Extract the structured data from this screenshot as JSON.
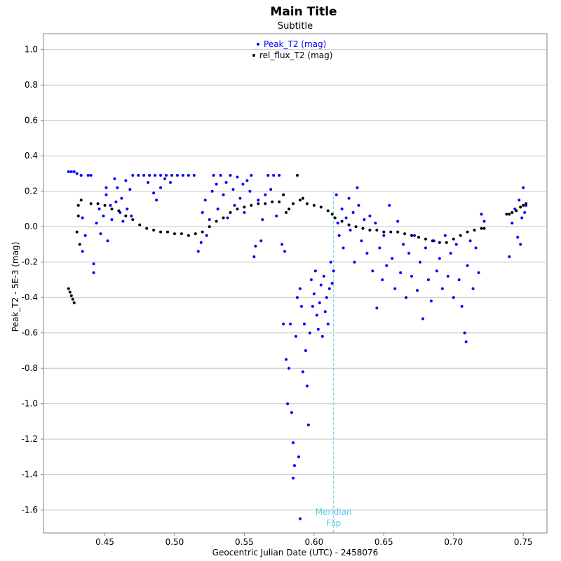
{
  "chart_data": {
    "type": "scatter",
    "title": "Main Title",
    "subtitle": "Subtitle",
    "xlabel": "Geocentric Julian Date (UTC) - 2458076",
    "ylabel": "Peak_T2 - 5E-3 (mag)",
    "xlim": [
      0.406,
      0.767
    ],
    "ylim": [
      -1.73,
      1.09
    ],
    "xticks": [
      0.45,
      0.5,
      0.55,
      0.6,
      0.65,
      0.7,
      0.75
    ],
    "xtick_labels": [
      "0.45",
      "0.50",
      "0.55",
      "0.60",
      "0.65",
      "0.70",
      "0.75"
    ],
    "yticks": [
      1.0,
      0.8,
      0.6,
      0.4,
      0.2,
      0.0,
      -0.2,
      -0.4,
      -0.6,
      -0.8,
      -1.0,
      -1.2,
      -1.4,
      -1.6
    ],
    "ytick_labels": [
      "1.0",
      "0.8",
      "0.6",
      "0.4",
      "0.2",
      "0.0",
      "-0.2",
      "-0.4",
      "-0.6",
      "-0.8",
      "-1.0",
      "-1.2",
      "-1.4",
      "-1.6"
    ],
    "grid": true,
    "legend_position": "top-center",
    "series": [
      {
        "name": "Peak_T2 (mag)",
        "color": "#0000ff",
        "points": [
          [
            0.424,
            0.31
          ],
          [
            0.426,
            0.31
          ],
          [
            0.428,
            0.31
          ],
          [
            0.43,
            0.3
          ],
          [
            0.433,
            0.29
          ],
          [
            0.438,
            0.29
          ],
          [
            0.44,
            0.29
          ],
          [
            0.434,
            0.05
          ],
          [
            0.436,
            -0.05
          ],
          [
            0.434,
            -0.14
          ],
          [
            0.442,
            -0.26
          ],
          [
            0.442,
            -0.21
          ],
          [
            0.444,
            0.02
          ],
          [
            0.446,
            0.1
          ],
          [
            0.447,
            -0.04
          ],
          [
            0.449,
            0.06
          ],
          [
            0.451,
            0.18
          ],
          [
            0.451,
            0.22
          ],
          [
            0.452,
            -0.08
          ],
          [
            0.454,
            0.12
          ],
          [
            0.455,
            0.04
          ],
          [
            0.457,
            0.27
          ],
          [
            0.458,
            0.14
          ],
          [
            0.459,
            0.22
          ],
          [
            0.461,
            0.08
          ],
          [
            0.462,
            0.16
          ],
          [
            0.463,
            0.03
          ],
          [
            0.465,
            0.26
          ],
          [
            0.466,
            0.1
          ],
          [
            0.468,
            0.21
          ],
          [
            0.469,
            0.06
          ],
          [
            0.47,
            0.29
          ],
          [
            0.474,
            0.29
          ],
          [
            0.478,
            0.29
          ],
          [
            0.482,
            0.29
          ],
          [
            0.486,
            0.29
          ],
          [
            0.49,
            0.29
          ],
          [
            0.494,
            0.29
          ],
          [
            0.498,
            0.29
          ],
          [
            0.502,
            0.29
          ],
          [
            0.506,
            0.29
          ],
          [
            0.51,
            0.29
          ],
          [
            0.514,
            0.29
          ],
          [
            0.481,
            0.25
          ],
          [
            0.485,
            0.19
          ],
          [
            0.487,
            0.15
          ],
          [
            0.49,
            0.22
          ],
          [
            0.493,
            0.27
          ],
          [
            0.497,
            0.25
          ],
          [
            0.517,
            -0.14
          ],
          [
            0.519,
            -0.09
          ],
          [
            0.52,
            0.08
          ],
          [
            0.522,
            0.15
          ],
          [
            0.523,
            -0.05
          ],
          [
            0.525,
            0.04
          ],
          [
            0.527,
            0.2
          ],
          [
            0.528,
            0.29
          ],
          [
            0.53,
            0.24
          ],
          [
            0.531,
            0.1
          ],
          [
            0.533,
            0.29
          ],
          [
            0.535,
            0.18
          ],
          [
            0.537,
            0.25
          ],
          [
            0.538,
            0.05
          ],
          [
            0.54,
            0.29
          ],
          [
            0.542,
            0.21
          ],
          [
            0.543,
            0.12
          ],
          [
            0.545,
            0.28
          ],
          [
            0.547,
            0.16
          ],
          [
            0.549,
            0.24
          ],
          [
            0.55,
            0.08
          ],
          [
            0.552,
            0.26
          ],
          [
            0.554,
            0.2
          ],
          [
            0.555,
            0.29
          ],
          [
            0.557,
            -0.17
          ],
          [
            0.558,
            -0.11
          ],
          [
            0.56,
            0.15
          ],
          [
            0.562,
            -0.08
          ],
          [
            0.563,
            0.04
          ],
          [
            0.565,
            0.18
          ],
          [
            0.567,
            0.29
          ],
          [
            0.569,
            0.21
          ],
          [
            0.571,
            0.29
          ],
          [
            0.573,
            0.06
          ],
          [
            0.575,
            0.29
          ],
          [
            0.577,
            -0.1
          ],
          [
            0.579,
            -0.14
          ],
          [
            0.578,
            -0.55
          ],
          [
            0.58,
            -0.75
          ],
          [
            0.581,
            -1.0
          ],
          [
            0.582,
            -0.8
          ],
          [
            0.583,
            -0.55
          ],
          [
            0.584,
            -1.05
          ],
          [
            0.585,
            -1.22
          ],
          [
            0.585,
            -1.42
          ],
          [
            0.586,
            -1.35
          ],
          [
            0.587,
            -0.62
          ],
          [
            0.588,
            -0.4
          ],
          [
            0.589,
            -1.3
          ],
          [
            0.59,
            -1.65
          ],
          [
            0.59,
            -0.35
          ],
          [
            0.591,
            -0.45
          ],
          [
            0.592,
            -0.82
          ],
          [
            0.593,
            -0.55
          ],
          [
            0.594,
            -0.7
          ],
          [
            0.595,
            -0.9
          ],
          [
            0.596,
            -1.12
          ],
          [
            0.597,
            -0.6
          ],
          [
            0.598,
            -0.3
          ],
          [
            0.599,
            -0.45
          ],
          [
            0.6,
            -0.38
          ],
          [
            0.601,
            -0.25
          ],
          [
            0.602,
            -0.5
          ],
          [
            0.603,
            -0.58
          ],
          [
            0.604,
            -0.43
          ],
          [
            0.605,
            -0.33
          ],
          [
            0.606,
            -0.62
          ],
          [
            0.607,
            -0.28
          ],
          [
            0.608,
            -0.48
          ],
          [
            0.609,
            -0.4
          ],
          [
            0.61,
            -0.55
          ],
          [
            0.611,
            -0.35
          ],
          [
            0.612,
            -0.2
          ],
          [
            0.613,
            -0.32
          ],
          [
            0.614,
            -0.25
          ],
          [
            0.616,
            0.18
          ],
          [
            0.617,
            0.02
          ],
          [
            0.618,
            -0.05
          ],
          [
            0.62,
            0.1
          ],
          [
            0.621,
            -0.12
          ],
          [
            0.623,
            0.05
          ],
          [
            0.625,
            0.16
          ],
          [
            0.626,
            -0.02
          ],
          [
            0.628,
            0.08
          ],
          [
            0.629,
            -0.2
          ],
          [
            0.631,
            0.22
          ],
          [
            0.632,
            0.12
          ],
          [
            0.634,
            -0.08
          ],
          [
            0.636,
            0.04
          ],
          [
            0.638,
            -0.15
          ],
          [
            0.64,
            0.06
          ],
          [
            0.642,
            -0.25
          ],
          [
            0.644,
            0.02
          ],
          [
            0.645,
            -0.46
          ],
          [
            0.647,
            -0.12
          ],
          [
            0.649,
            -0.3
          ],
          [
            0.65,
            -0.05
          ],
          [
            0.652,
            -0.22
          ],
          [
            0.654,
            0.12
          ],
          [
            0.656,
            -0.18
          ],
          [
            0.658,
            -0.35
          ],
          [
            0.66,
            0.03
          ],
          [
            0.662,
            -0.26
          ],
          [
            0.664,
            -0.1
          ],
          [
            0.666,
            -0.4
          ],
          [
            0.668,
            -0.15
          ],
          [
            0.67,
            -0.28
          ],
          [
            0.672,
            -0.05
          ],
          [
            0.674,
            -0.36
          ],
          [
            0.676,
            -0.2
          ],
          [
            0.678,
            -0.52
          ],
          [
            0.68,
            -0.12
          ],
          [
            0.682,
            -0.3
          ],
          [
            0.684,
            -0.42
          ],
          [
            0.686,
            -0.08
          ],
          [
            0.688,
            -0.25
          ],
          [
            0.69,
            -0.18
          ],
          [
            0.692,
            -0.35
          ],
          [
            0.694,
            -0.05
          ],
          [
            0.696,
            -0.28
          ],
          [
            0.698,
            -0.15
          ],
          [
            0.7,
            -0.4
          ],
          [
            0.702,
            -0.1
          ],
          [
            0.704,
            -0.3
          ],
          [
            0.706,
            -0.45
          ],
          [
            0.708,
            -0.6
          ],
          [
            0.709,
            -0.65
          ],
          [
            0.71,
            -0.22
          ],
          [
            0.712,
            -0.08
          ],
          [
            0.714,
            -0.35
          ],
          [
            0.716,
            -0.12
          ],
          [
            0.718,
            -0.26
          ],
          [
            0.72,
            0.07
          ],
          [
            0.722,
            0.03
          ],
          [
            0.74,
            -0.17
          ],
          [
            0.742,
            0.02
          ],
          [
            0.744,
            0.1
          ],
          [
            0.746,
            -0.06
          ],
          [
            0.747,
            0.15
          ],
          [
            0.748,
            -0.1
          ],
          [
            0.749,
            0.05
          ],
          [
            0.75,
            0.22
          ],
          [
            0.751,
            0.08
          ],
          [
            0.752,
            0.12
          ]
        ]
      },
      {
        "name": "rel_flux_T2 (mag)",
        "color": "#000000",
        "points": [
          [
            0.424,
            -0.35
          ],
          [
            0.425,
            -0.37
          ],
          [
            0.426,
            -0.39
          ],
          [
            0.427,
            -0.41
          ],
          [
            0.428,
            -0.43
          ],
          [
            0.43,
            -0.03
          ],
          [
            0.431,
            0.06
          ],
          [
            0.431,
            0.12
          ],
          [
            0.432,
            -0.1
          ],
          [
            0.433,
            0.15
          ],
          [
            0.44,
            0.13
          ],
          [
            0.445,
            0.13
          ],
          [
            0.45,
            0.12
          ],
          [
            0.455,
            0.1
          ],
          [
            0.46,
            0.09
          ],
          [
            0.465,
            0.06
          ],
          [
            0.47,
            0.04
          ],
          [
            0.475,
            0.01
          ],
          [
            0.48,
            -0.01
          ],
          [
            0.485,
            -0.02
          ],
          [
            0.49,
            -0.03
          ],
          [
            0.495,
            -0.03
          ],
          [
            0.5,
            -0.04
          ],
          [
            0.505,
            -0.04
          ],
          [
            0.51,
            -0.05
          ],
          [
            0.515,
            -0.04
          ],
          [
            0.52,
            -0.03
          ],
          [
            0.525,
            0.0
          ],
          [
            0.53,
            0.03
          ],
          [
            0.535,
            0.05
          ],
          [
            0.54,
            0.08
          ],
          [
            0.545,
            0.1
          ],
          [
            0.55,
            0.11
          ],
          [
            0.555,
            0.12
          ],
          [
            0.56,
            0.13
          ],
          [
            0.565,
            0.13
          ],
          [
            0.57,
            0.14
          ],
          [
            0.575,
            0.14
          ],
          [
            0.578,
            0.18
          ],
          [
            0.58,
            0.08
          ],
          [
            0.582,
            0.1
          ],
          [
            0.585,
            0.13
          ],
          [
            0.588,
            0.29
          ],
          [
            0.59,
            0.15
          ],
          [
            0.592,
            0.16
          ],
          [
            0.595,
            0.13
          ],
          [
            0.6,
            0.12
          ],
          [
            0.605,
            0.11
          ],
          [
            0.61,
            0.09
          ],
          [
            0.613,
            0.07
          ],
          [
            0.615,
            0.05
          ],
          [
            0.62,
            0.03
          ],
          [
            0.625,
            0.01
          ],
          [
            0.63,
            0.0
          ],
          [
            0.635,
            -0.01
          ],
          [
            0.64,
            -0.02
          ],
          [
            0.645,
            -0.02
          ],
          [
            0.65,
            -0.03
          ],
          [
            0.655,
            -0.03
          ],
          [
            0.66,
            -0.03
          ],
          [
            0.665,
            -0.04
          ],
          [
            0.67,
            -0.05
          ],
          [
            0.675,
            -0.06
          ],
          [
            0.68,
            -0.07
          ],
          [
            0.685,
            -0.08
          ],
          [
            0.69,
            -0.09
          ],
          [
            0.695,
            -0.09
          ],
          [
            0.7,
            -0.07
          ],
          [
            0.705,
            -0.05
          ],
          [
            0.71,
            -0.03
          ],
          [
            0.715,
            -0.02
          ],
          [
            0.72,
            -0.01
          ],
          [
            0.722,
            -0.01
          ],
          [
            0.738,
            0.07
          ],
          [
            0.74,
            0.07
          ],
          [
            0.742,
            0.08
          ],
          [
            0.745,
            0.09
          ],
          [
            0.748,
            0.11
          ],
          [
            0.75,
            0.12
          ],
          [
            0.752,
            0.13
          ]
        ]
      }
    ],
    "annotations": [
      {
        "type": "vline",
        "x": 0.614,
        "label_line1": "Meridian",
        "label_line2": "Flip",
        "color": "#5bc8e8"
      }
    ]
  }
}
